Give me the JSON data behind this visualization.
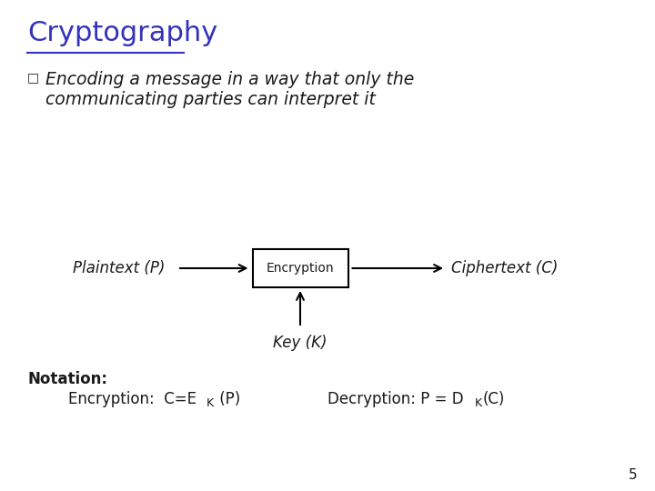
{
  "title": "Cryptography",
  "title_color": "#3333bb",
  "title_fontsize": 22,
  "bullet_char": "❏",
  "bullet_text_line1": "Encoding a message in a way that only the",
  "bullet_text_line2": "communicating parties can interpret it",
  "bullet_fontsize": 13.5,
  "diagram_box_label": "Encryption",
  "diagram_left_label": "Plaintext (P)",
  "diagram_right_label": "Ciphertext (C)",
  "diagram_bottom_label": "Key (K)",
  "notation_bold": "Notation:",
  "notation_enc": "Encryption:  C=E",
  "notation_enc_sub": "K",
  "notation_enc_suffix": " (P)",
  "notation_dec": "Decryption: P = D",
  "notation_dec_sub": "K",
  "notation_dec_suffix": "(C)",
  "page_number": "5",
  "text_color": "#1a1a1a",
  "box_edge_color": "#000000",
  "arrow_color": "#000000",
  "fig_width": 7.2,
  "fig_height": 5.4,
  "dpi": 100
}
